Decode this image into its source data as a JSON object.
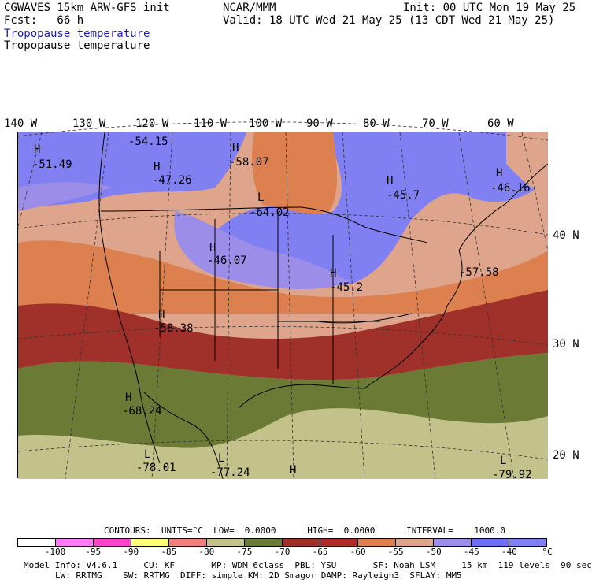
{
  "header": {
    "model": "CGWAVES 15km ARW-GFS init",
    "org": "NCAR/MMM",
    "init": "Init: 00 UTC Mon 19 May 25",
    "fcst": "Fcst:   66 h",
    "valid": "Valid: 18 UTC Wed 21 May 25 (13 CDT Wed 21 May 25)",
    "field_colored": "Tropopause temperature",
    "field_contour": "Tropopause temperature"
  },
  "longitude_labels": [
    "140 W",
    "130 W",
    "120 W",
    "110 W",
    "100 W",
    "90 W",
    "80 W",
    "70 W",
    "60 W"
  ],
  "latitude_labels": [
    "40 N",
    "30 N",
    "20 N"
  ],
  "extrema": [
    {
      "type": "H",
      "value": "-51.49"
    },
    {
      "type": "",
      "value": "-54.15"
    },
    {
      "type": "H",
      "value": "-47.26"
    },
    {
      "type": "H",
      "value": "-58.07"
    },
    {
      "type": "L",
      "value": "-64.02"
    },
    {
      "type": "H",
      "value": "-45.7"
    },
    {
      "type": "H",
      "value": "-46.16"
    },
    {
      "type": "H",
      "value": "-46.07"
    },
    {
      "type": "H",
      "value": "-45.2"
    },
    {
      "type": "",
      "value": "-57.58"
    },
    {
      "type": "H",
      "value": "-58.38"
    },
    {
      "type": "H",
      "value": "-68.24"
    },
    {
      "type": "L",
      "value": "-78.01"
    },
    {
      "type": "L",
      "value": "-77.24"
    },
    {
      "type": "H",
      "value": ""
    },
    {
      "type": "L",
      "value": "-79.92"
    }
  ],
  "contour_info": {
    "label": "CONTOURS:  UNITS=°C  LOW=  0.0000      HIGH=  0.0000      INTERVAL=    1000.0"
  },
  "colorbar": {
    "colors": [
      "#ffffff",
      "#ff7af5",
      "#ff44cc",
      "#ffff7a",
      "#f08080",
      "#c2c28a",
      "#6b7a35",
      "#a0302a",
      "#ad2d28",
      "#dd8050",
      "#dea58c",
      "#9c8ee8",
      "#6e6ef5",
      "#8080f2"
    ],
    "ticks": [
      "-100",
      "-95",
      "-90",
      "-85",
      "-80",
      "-75",
      "-70",
      "-65",
      "-60",
      "-55",
      "-50",
      "-45",
      "-40",
      "°C"
    ]
  },
  "footer": {
    "line1": "Model Info: V4.6.1     CU: KF       MP: WDM 6class  PBL: YSU       SF: Noah LSM     15 km  119 levels  90 sec",
    "line2": "LW: RRTMG    SW: RRTMG  DIFF: simple KM: 2D Smagor DAMP: Rayleigh3  SFLAY: MM5"
  }
}
